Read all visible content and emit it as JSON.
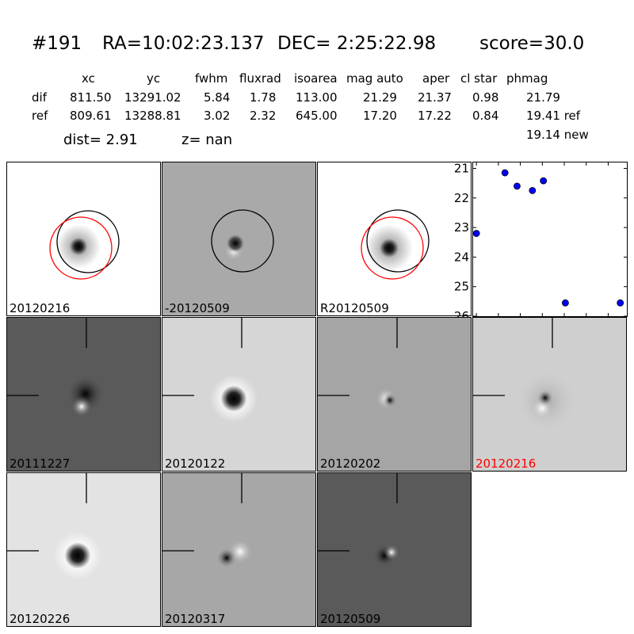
{
  "header": {
    "id": "#191",
    "ra": "RA=10:02:23.137",
    "dec": "DEC= 2:25:22.98",
    "score": "score=30.0"
  },
  "table": {
    "columns": [
      "xc",
      "yc",
      "fwhm",
      "fluxrad",
      "isoarea",
      "mag auto",
      "aper",
      "cl star",
      "phmag"
    ],
    "rows": [
      {
        "label": "dif",
        "values": [
          "811.50",
          "13291.02",
          "5.84",
          "1.78",
          "113.00",
          "21.29",
          "21.37",
          "0.98",
          "21.79"
        ]
      },
      {
        "label": "ref",
        "values": [
          "809.61",
          "13288.81",
          "3.02",
          "2.32",
          "645.00",
          "17.20",
          "17.22",
          "0.84",
          "19.41 ref"
        ]
      }
    ],
    "phmag_new": "19.14 new"
  },
  "dist": "dist=  2.91",
  "z": "z=   nan",
  "stamps": [
    {
      "label": "20120216",
      "bg": "#ffffff"
    },
    {
      "label": "-20120509",
      "bg": "#a9a9a9"
    },
    {
      "label": "R20120509",
      "bg": "#ffffff"
    },
    {
      "label": "20111227",
      "bg": "#5a5a5a"
    },
    {
      "label": "20120122",
      "bg": "#d6d6d6"
    },
    {
      "label": "20120202",
      "bg": "#a5a5a5"
    },
    {
      "label": "20120216",
      "bg": "#cfcfcf",
      "color": "#ff0000"
    },
    {
      "label": "20120226",
      "bg": "#e3e3e3"
    },
    {
      "label": "20120317",
      "bg": "#a7a7a7"
    },
    {
      "label": "20120509",
      "bg": "#5a5a5a"
    }
  ],
  "chart_data": {
    "type": "scatter",
    "x": [
      0,
      26,
      37,
      51,
      61,
      81,
      131
    ],
    "y": [
      23.2,
      21.15,
      21.6,
      21.75,
      21.42,
      25.55,
      25.55
    ],
    "xlim": [
      -3,
      137
    ],
    "ylim": [
      26,
      20.8
    ],
    "yticks": [
      "21",
      "22",
      "23",
      "24",
      "25",
      "26"
    ],
    "xticks": [
      "0",
      "20",
      "40",
      "60",
      "80",
      "100",
      "120"
    ],
    "marker_color": "#0000ff"
  }
}
